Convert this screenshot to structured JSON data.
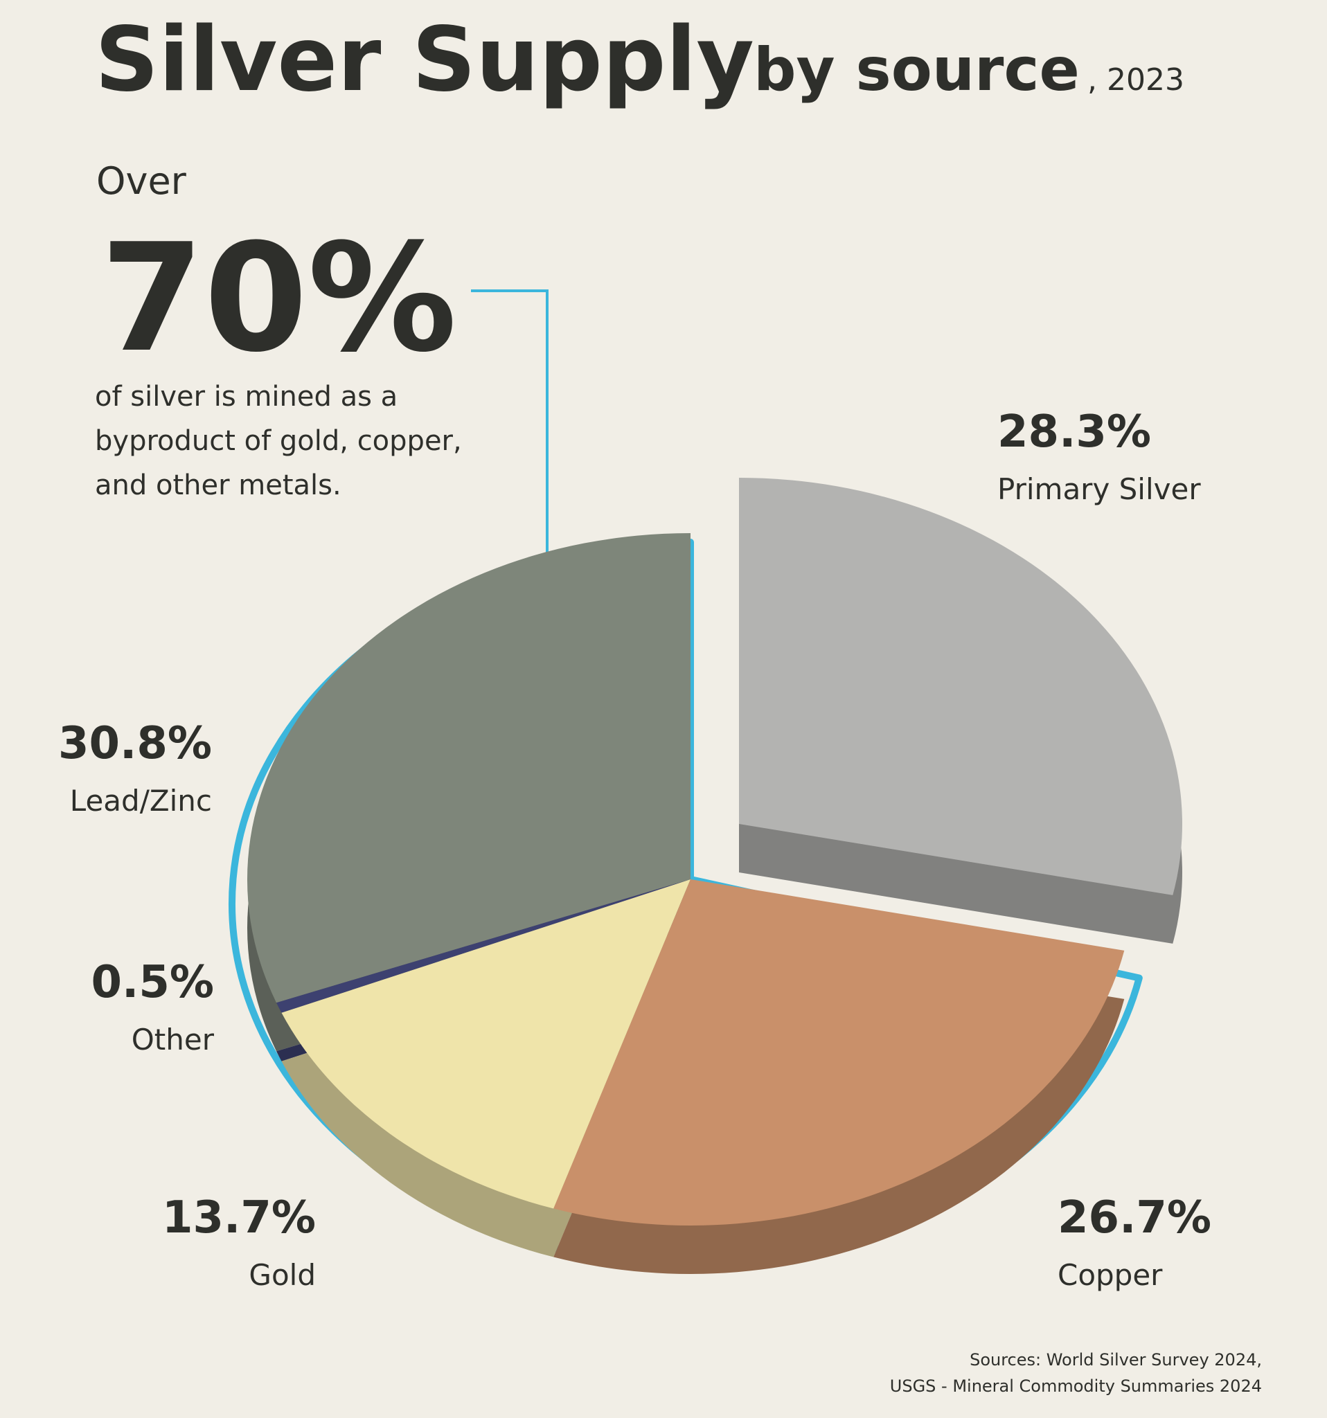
{
  "chart_data": {
    "type": "pie",
    "title": "Silver Supply",
    "subtitle": "by source",
    "year": ", 2023",
    "annotation": {
      "lead": "Over",
      "figure": "70%",
      "lines": [
        "of silver is mined as a",
        "byproduct of gold, copper,",
        "and other metals."
      ]
    },
    "categories": [
      "Primary Silver",
      "Copper",
      "Gold",
      "Other",
      "Lead/Zinc"
    ],
    "values": [
      28.3,
      26.7,
      13.7,
      0.5,
      30.8
    ],
    "value_labels": [
      "28.3%",
      "26.7%",
      "13.7%",
      "0.5%",
      "30.8%"
    ],
    "colors": [
      "#b3b3b1",
      "#c9906a",
      "#efe4aa",
      "#3d4170",
      "#7e867a"
    ],
    "accent_color": "#3bb6dc",
    "sources": [
      "Sources: World Silver Survey 2024,",
      "USGS - Mineral Commodity Summaries 2024"
    ]
  }
}
